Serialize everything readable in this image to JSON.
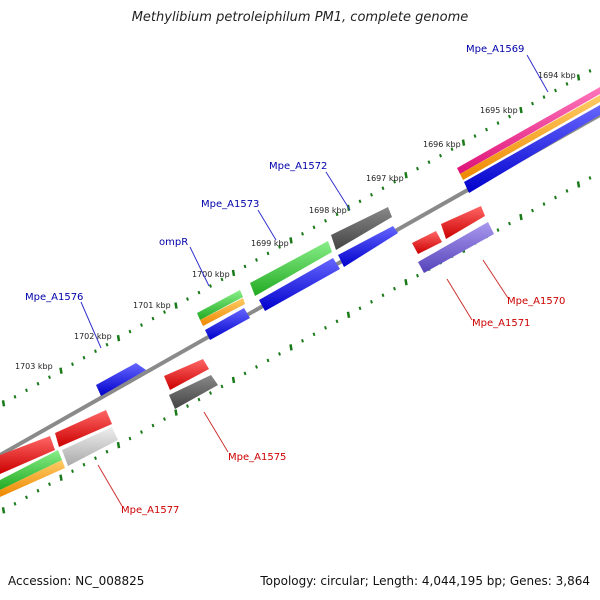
{
  "title": "Methylibium petroleiphilum PM1, complete genome",
  "footer": {
    "accession": "Accession: NC_008825",
    "topology": "Topology: circular; Length: 4,044,195 bp; Genes: 3,864"
  },
  "kbp_labels": [
    "1694 kbp",
    "1695 kbp",
    "1696 kbp",
    "1697 kbp",
    "1698 kbp",
    "1699 kbp",
    "1700 kbp",
    "1701 kbp",
    "1702 kbp",
    "1703 kbp"
  ],
  "gene_labels_top": [
    "Mpe_A1569",
    "Mpe_A1572",
    "Mpe_A1573",
    "ompR",
    "Mpe_A1576"
  ],
  "gene_labels_bottom": [
    "Mpe_A1570",
    "Mpe_A1571",
    "Mpe_A1575",
    "Mpe_A1577"
  ],
  "colors": {
    "backbone": "#808080",
    "cds_blue": "#0000ee",
    "cds_red": "#ee0000",
    "cds_gray": "#555555",
    "cds_green": "#33bb33",
    "cds_orange": "#ff9900",
    "cds_magenta": "#ee2288",
    "cds_purple": "#7766cc",
    "cds_lightgray": "#bbbbbb",
    "tick": "#1a7a1a",
    "label_blue": "#0000aa",
    "label_red": "#cc0000"
  }
}
